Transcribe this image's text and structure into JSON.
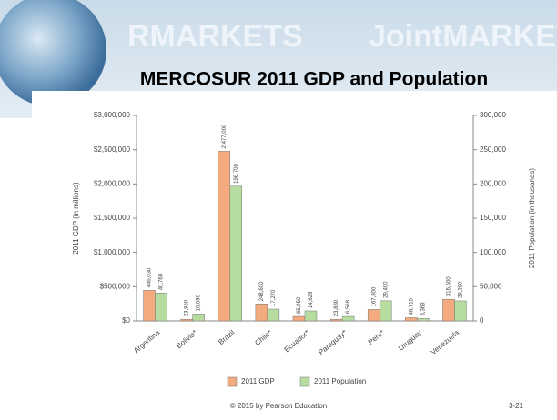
{
  "banner": {
    "left": "RMARKETS",
    "right": "JointMARKETS"
  },
  "chart_data": {
    "type": "bar",
    "title": "MERCOSUR 2011 GDP and Population",
    "categories": [
      "Argentina",
      "Bolivia*",
      "Brazil",
      "Chile*",
      "Ecuador*",
      "Paraguay*",
      "Peru*",
      "Uruguay",
      "Venezuela"
    ],
    "series": [
      {
        "name": "2011 GDP",
        "color": "#f2aa7e",
        "axis": "y",
        "values": [
          446030,
          23950,
          2477000,
          248600,
          65950,
          23880,
          167800,
          46710,
          316500
        ],
        "value_labels": [
          "446,030",
          "23,950",
          "2,477,000",
          "248,600",
          "65,950",
          "23,880",
          "167,800",
          "46,710",
          "316,500"
        ]
      },
      {
        "name": "2011 Population",
        "color": "#b6dca0",
        "axis": "y2",
        "values": [
          40760,
          10090,
          196700,
          17270,
          14625,
          6568,
          29400,
          3369,
          29280
        ],
        "value_labels": [
          "40,760",
          "10,090",
          "196,700",
          "17,270",
          "14,625",
          "6,568",
          "29,400",
          "3,369",
          "29,280"
        ]
      }
    ],
    "ylabel": "2011 GDP (in millions)",
    "y2label": "2011 Population (in thousands)",
    "ylim": [
      0,
      3000000
    ],
    "yticks": [
      {
        "value": 0,
        "label": "$0"
      },
      {
        "value": 500000,
        "label": "$500,000"
      },
      {
        "value": 1000000,
        "label": "$1,000,000"
      },
      {
        "value": 1500000,
        "label": "$1,500,000"
      },
      {
        "value": 2000000,
        "label": "$2,000,000"
      },
      {
        "value": 2500000,
        "label": "$2,500,000"
      },
      {
        "value": 3000000,
        "label": "$3,000,000"
      }
    ],
    "y2lim": [
      0,
      300000
    ],
    "y2ticks": [
      0,
      {
        "value": 50000,
        "label": "50,000"
      },
      {
        "value": 100000,
        "label": "100,000"
      },
      {
        "value": 150000,
        "label": "150,000"
      },
      {
        "value": 200000,
        "label": "200,000"
      },
      {
        "value": 250000,
        "label": "250,000"
      },
      {
        "value": 300000,
        "label": "300,000"
      }
    ],
    "grid": false,
    "legend": "bottom"
  },
  "footer": {
    "credit": "© 2015 by Pearson Education",
    "page": "3-21"
  }
}
